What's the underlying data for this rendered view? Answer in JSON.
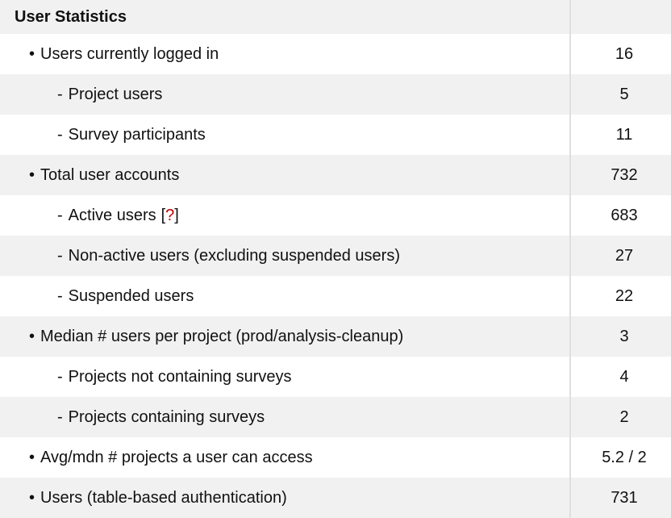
{
  "theme": {
    "alt_row_bg": "#f1f1f1",
    "divider_line": "#dfdfdf",
    "text_color": "#111111",
    "help_red": "#c00000"
  },
  "table": {
    "title": "User Statistics",
    "rows": [
      {
        "indent": 1,
        "bullet": "•",
        "label": "Users currently logged in",
        "value": "16",
        "alt": false
      },
      {
        "indent": 2,
        "bullet": "-",
        "label": "Project users",
        "value": "5",
        "alt": true
      },
      {
        "indent": 2,
        "bullet": "-",
        "label": "Survey participants",
        "value": "11",
        "alt": false
      },
      {
        "indent": 1,
        "bullet": "•",
        "label": "Total user accounts",
        "value": "732",
        "alt": true
      },
      {
        "indent": 2,
        "bullet": "-",
        "label": "Active users",
        "help": {
          "open": "[",
          "mark": "?",
          "close": "]"
        },
        "value": "683",
        "alt": false
      },
      {
        "indent": 2,
        "bullet": "-",
        "label": "Non-active users (excluding suspended users)",
        "value": "27",
        "alt": true
      },
      {
        "indent": 2,
        "bullet": "-",
        "label": "Suspended users",
        "value": "22",
        "alt": false
      },
      {
        "indent": 1,
        "bullet": "•",
        "label": "Median # users per project (prod/analysis-cleanup)",
        "value": "3",
        "alt": true
      },
      {
        "indent": 2,
        "bullet": "-",
        "label": "Projects not containing surveys",
        "value": "4",
        "alt": false
      },
      {
        "indent": 2,
        "bullet": "-",
        "label": "Projects containing surveys",
        "value": "2",
        "alt": true
      },
      {
        "indent": 1,
        "bullet": "•",
        "label": "Avg/mdn # projects a user can access",
        "value": "5.2 / 2",
        "alt": false
      },
      {
        "indent": 1,
        "bullet": "•",
        "label": "Users (table-based authentication)",
        "value": "731",
        "alt": true
      }
    ]
  }
}
